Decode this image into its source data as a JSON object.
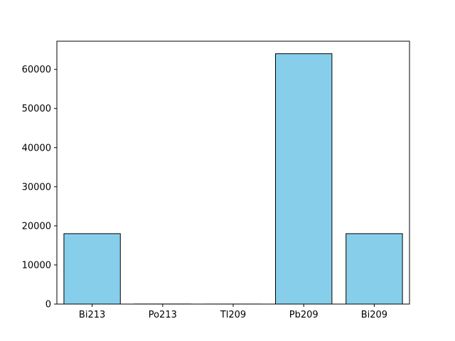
{
  "chart_data": {
    "type": "bar",
    "categories": [
      "Bi213",
      "Po213",
      "Tl209",
      "Pb209",
      "Bi209"
    ],
    "values": [
      18000,
      20,
      10,
      64000,
      18000
    ],
    "ylim": [
      0,
      67200
    ],
    "yticks": [
      0,
      10000,
      20000,
      30000,
      40000,
      50000,
      60000
    ],
    "grid": false,
    "colors": {
      "bar": "#87ceeb",
      "edge": "#000000"
    }
  }
}
